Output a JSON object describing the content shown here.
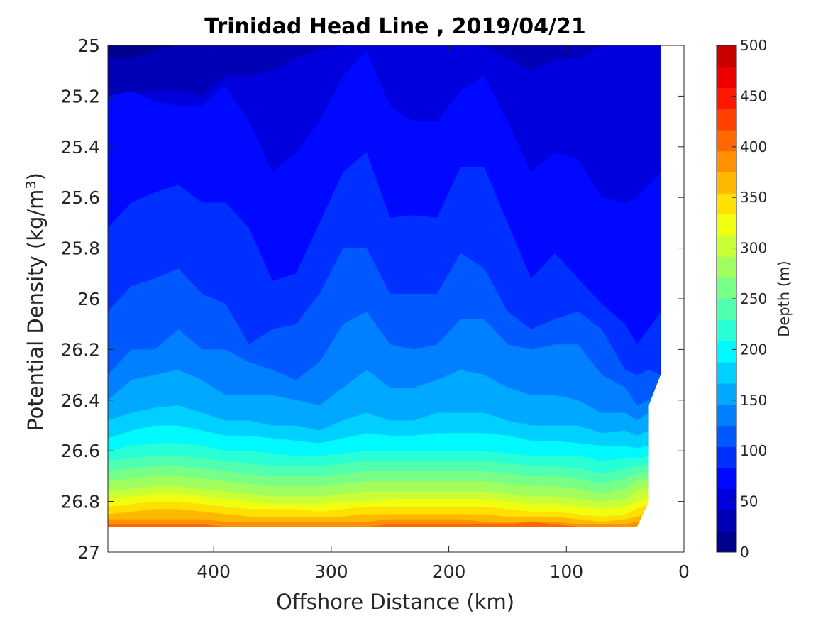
{
  "chart_data": {
    "type": "filled-contour",
    "title": "Trinidad Head Line , 2019/04/21",
    "xlabel": "Offshore Distance (km)",
    "ylabel_main": "Potential Density (kg/m",
    "ylabel_sup": "3",
    "ylabel_close": ")",
    "x_reversed": true,
    "xlim": [
      0,
      490
    ],
    "ylim": [
      25,
      27
    ],
    "y_reversed": true,
    "xticks": [
      400,
      300,
      200,
      100,
      0
    ],
    "yticks": [
      25,
      25.2,
      25.4,
      25.6,
      25.8,
      26,
      26.2,
      26.4,
      26.6,
      26.8,
      27
    ],
    "data_extent": {
      "x_min": 20,
      "x_max": 490,
      "density_bottom": 26.9
    },
    "colorbar": {
      "label": "Depth (m)",
      "range": [
        0,
        500
      ],
      "ticks": [
        0,
        50,
        100,
        150,
        200,
        250,
        300,
        350,
        400,
        450,
        500
      ],
      "level_step": 25,
      "colors": [
        "#00008f",
        "#0000b7",
        "#0000df",
        "#0008ff",
        "#0030ff",
        "#0058ff",
        "#0080ff",
        "#00a8ff",
        "#00d0ff",
        "#00f8ff",
        "#28ffd7",
        "#50ffaf",
        "#78ff87",
        "#a0ff5f",
        "#c8ff37",
        "#f0ff0f",
        "#ffe000",
        "#ffb800",
        "#ff9000",
        "#ff6800",
        "#ff4000",
        "#ff1800",
        "#ef0000",
        "#c70000"
      ]
    },
    "contours": {
      "x": [
        490,
        470,
        450,
        430,
        410,
        390,
        370,
        350,
        330,
        310,
        290,
        270,
        250,
        230,
        210,
        190,
        170,
        150,
        130,
        110,
        90,
        70,
        50,
        40,
        30,
        20
      ],
      "depths": [
        25,
        50,
        75,
        100,
        125,
        150,
        175,
        200,
        225,
        250,
        275,
        300,
        325,
        350,
        375,
        400,
        425,
        450,
        475
      ],
      "density": [
        [
          25.05,
          25.05,
          25.02,
          25.0,
          25.0,
          25.0,
          25.0,
          25.0,
          25.0,
          25.0,
          25.0,
          25.0,
          25.0,
          25.0,
          25.0,
          25.0,
          25.0,
          25.0,
          25.0,
          25.0,
          25.0,
          25.0,
          25.0,
          25.0,
          25.0,
          25.0
        ],
        [
          25.2,
          25.2,
          25.18,
          25.18,
          25.2,
          25.12,
          25.12,
          25.1,
          25.05,
          25.02,
          25.0,
          25.0,
          25.0,
          25.0,
          25.0,
          25.0,
          25.0,
          25.05,
          25.1,
          25.06,
          25.05,
          25.0,
          25.0,
          25.0,
          25.0,
          25.0
        ],
        [
          25.2,
          25.18,
          25.22,
          25.24,
          25.24,
          25.16,
          25.3,
          25.5,
          25.42,
          25.3,
          25.12,
          25.02,
          25.24,
          25.3,
          25.3,
          25.18,
          25.12,
          25.3,
          25.5,
          25.42,
          25.45,
          25.6,
          25.62,
          25.6,
          25.55,
          25.5
        ],
        [
          25.72,
          25.62,
          25.58,
          25.55,
          25.62,
          25.62,
          25.72,
          25.93,
          25.9,
          25.7,
          25.5,
          25.42,
          25.68,
          25.67,
          25.68,
          25.48,
          25.48,
          25.7,
          25.92,
          25.82,
          25.92,
          26.02,
          26.1,
          26.18,
          26.12,
          26.05
        ],
        [
          26.05,
          25.95,
          25.92,
          25.88,
          25.98,
          26.02,
          26.18,
          26.12,
          26.1,
          25.98,
          25.8,
          25.8,
          25.98,
          25.98,
          25.98,
          25.82,
          25.88,
          26.05,
          26.12,
          26.08,
          26.05,
          26.12,
          26.28,
          26.3,
          26.28,
          26.3
        ],
        [
          26.3,
          26.2,
          26.2,
          26.12,
          26.2,
          26.2,
          26.25,
          26.28,
          26.32,
          26.25,
          26.1,
          26.05,
          26.18,
          26.2,
          26.18,
          26.08,
          26.08,
          26.18,
          26.2,
          26.18,
          26.18,
          26.3,
          26.35,
          26.42,
          26.4,
          26.35
        ],
        [
          26.4,
          26.32,
          26.3,
          26.28,
          26.32,
          26.38,
          26.38,
          26.38,
          26.4,
          26.42,
          26.35,
          26.28,
          26.35,
          26.35,
          26.32,
          26.28,
          26.3,
          26.35,
          26.38,
          26.38,
          26.4,
          26.45,
          26.45,
          26.48,
          26.45,
          26.45
        ],
        [
          26.48,
          26.45,
          26.43,
          26.42,
          26.45,
          26.48,
          26.48,
          26.5,
          26.5,
          26.52,
          26.48,
          26.45,
          26.48,
          26.48,
          26.45,
          26.45,
          26.45,
          26.48,
          26.5,
          26.5,
          26.5,
          26.53,
          26.52,
          26.54,
          26.52,
          26.52
        ],
        [
          26.55,
          26.52,
          26.5,
          26.5,
          26.52,
          26.54,
          26.54,
          26.55,
          26.56,
          26.57,
          26.55,
          26.53,
          26.54,
          26.54,
          26.53,
          26.53,
          26.53,
          26.54,
          26.56,
          26.56,
          26.57,
          26.58,
          26.58,
          26.59,
          26.58,
          26.58
        ],
        [
          26.6,
          26.58,
          26.57,
          26.57,
          26.58,
          26.6,
          26.6,
          26.61,
          26.62,
          26.62,
          26.61,
          26.6,
          26.6,
          26.6,
          26.6,
          26.6,
          26.6,
          26.61,
          26.62,
          26.62,
          26.62,
          26.64,
          26.63,
          26.63,
          26.62,
          26.62
        ],
        [
          26.64,
          26.63,
          26.62,
          26.62,
          26.63,
          26.64,
          26.65,
          26.66,
          26.66,
          26.66,
          26.65,
          26.64,
          26.64,
          26.64,
          26.64,
          26.64,
          26.64,
          26.65,
          26.66,
          26.66,
          26.67,
          26.69,
          26.67,
          26.66,
          26.65,
          26.65
        ],
        [
          26.68,
          26.67,
          26.66,
          26.66,
          26.67,
          26.68,
          26.69,
          26.7,
          26.7,
          26.7,
          26.69,
          26.68,
          26.68,
          26.68,
          26.68,
          26.68,
          26.68,
          26.69,
          26.7,
          26.7,
          26.71,
          26.73,
          26.71,
          26.69,
          26.68,
          26.68
        ],
        [
          26.72,
          26.71,
          26.7,
          26.7,
          26.71,
          26.72,
          26.73,
          26.74,
          26.74,
          26.74,
          26.73,
          26.72,
          26.72,
          26.72,
          26.72,
          26.72,
          26.72,
          26.73,
          26.74,
          26.74,
          26.75,
          26.77,
          26.75,
          26.72,
          26.71,
          26.71
        ],
        [
          26.76,
          26.75,
          26.74,
          26.74,
          26.75,
          26.76,
          26.77,
          26.78,
          26.78,
          26.78,
          26.77,
          26.76,
          26.76,
          26.76,
          26.76,
          26.76,
          26.76,
          26.77,
          26.78,
          26.78,
          26.79,
          26.8,
          26.79,
          26.76,
          26.74,
          26.74
        ],
        [
          26.79,
          26.78,
          26.77,
          26.77,
          26.78,
          26.79,
          26.8,
          26.81,
          26.81,
          26.81,
          26.8,
          26.8,
          26.79,
          26.79,
          26.79,
          26.79,
          26.79,
          26.8,
          26.81,
          26.81,
          26.82,
          26.83,
          26.82,
          26.8,
          26.78,
          26.78
        ],
        [
          26.82,
          26.81,
          26.8,
          26.8,
          26.81,
          26.82,
          26.83,
          26.83,
          26.83,
          26.84,
          26.83,
          26.82,
          26.82,
          26.82,
          26.82,
          26.82,
          26.82,
          26.83,
          26.84,
          26.84,
          26.85,
          26.86,
          26.85,
          26.83,
          26.81,
          26.81
        ],
        [
          26.85,
          26.84,
          26.83,
          26.83,
          26.84,
          26.85,
          26.86,
          26.86,
          26.86,
          26.86,
          26.86,
          26.85,
          26.85,
          26.85,
          26.85,
          26.85,
          26.85,
          26.86,
          26.86,
          26.86,
          26.87,
          26.88,
          26.87,
          26.86,
          26.84,
          26.84
        ],
        [
          26.87,
          26.87,
          26.87,
          26.87,
          26.87,
          26.88,
          26.88,
          26.88,
          26.88,
          26.88,
          26.88,
          26.88,
          26.87,
          26.87,
          26.87,
          26.87,
          26.88,
          26.88,
          26.88,
          26.88,
          26.89,
          26.89,
          26.89,
          26.88,
          26.87,
          26.87
        ],
        [
          26.89,
          26.89,
          26.89,
          26.89,
          26.89,
          26.9,
          26.9,
          26.9,
          26.9,
          26.9,
          26.9,
          26.9,
          26.89,
          26.89,
          26.89,
          26.89,
          26.89,
          26.89,
          26.88,
          26.89,
          26.9,
          26.9,
          26.9,
          26.9,
          26.89,
          26.89
        ]
      ]
    }
  }
}
